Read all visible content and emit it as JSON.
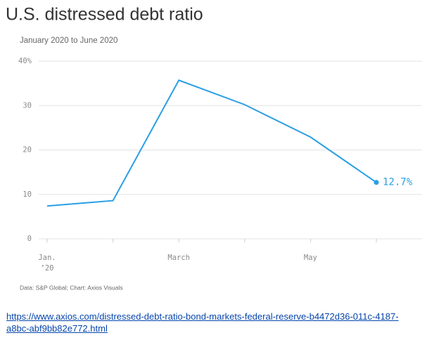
{
  "chart_data": {
    "type": "line",
    "title": "U.S. distressed debt ratio",
    "subtitle": "January 2020 to June 2020",
    "source": "Data: S&P Global; Chart: Axios Visuals",
    "categories": [
      "Jan. ’20",
      null,
      "March",
      null,
      "May",
      null
    ],
    "series": [
      {
        "name": "Distressed debt ratio",
        "color": "#2a9fe3",
        "values": [
          7.4,
          8.6,
          35.7,
          30.2,
          22.9,
          12.7
        ],
        "value_labels": [
          null,
          null,
          null,
          null,
          null,
          "12.7%"
        ]
      }
    ],
    "ylim": [
      0,
      40
    ],
    "yticks": [
      0,
      10,
      20,
      30,
      {
        "value": 40,
        "label": "40%"
      }
    ],
    "grid": true
  },
  "link": "https://www.axios.com/distressed-debt-ratio-bond-markets-federal-reserve-b4472d36-011c-4187-a8bc-abf9bb82e772.html"
}
